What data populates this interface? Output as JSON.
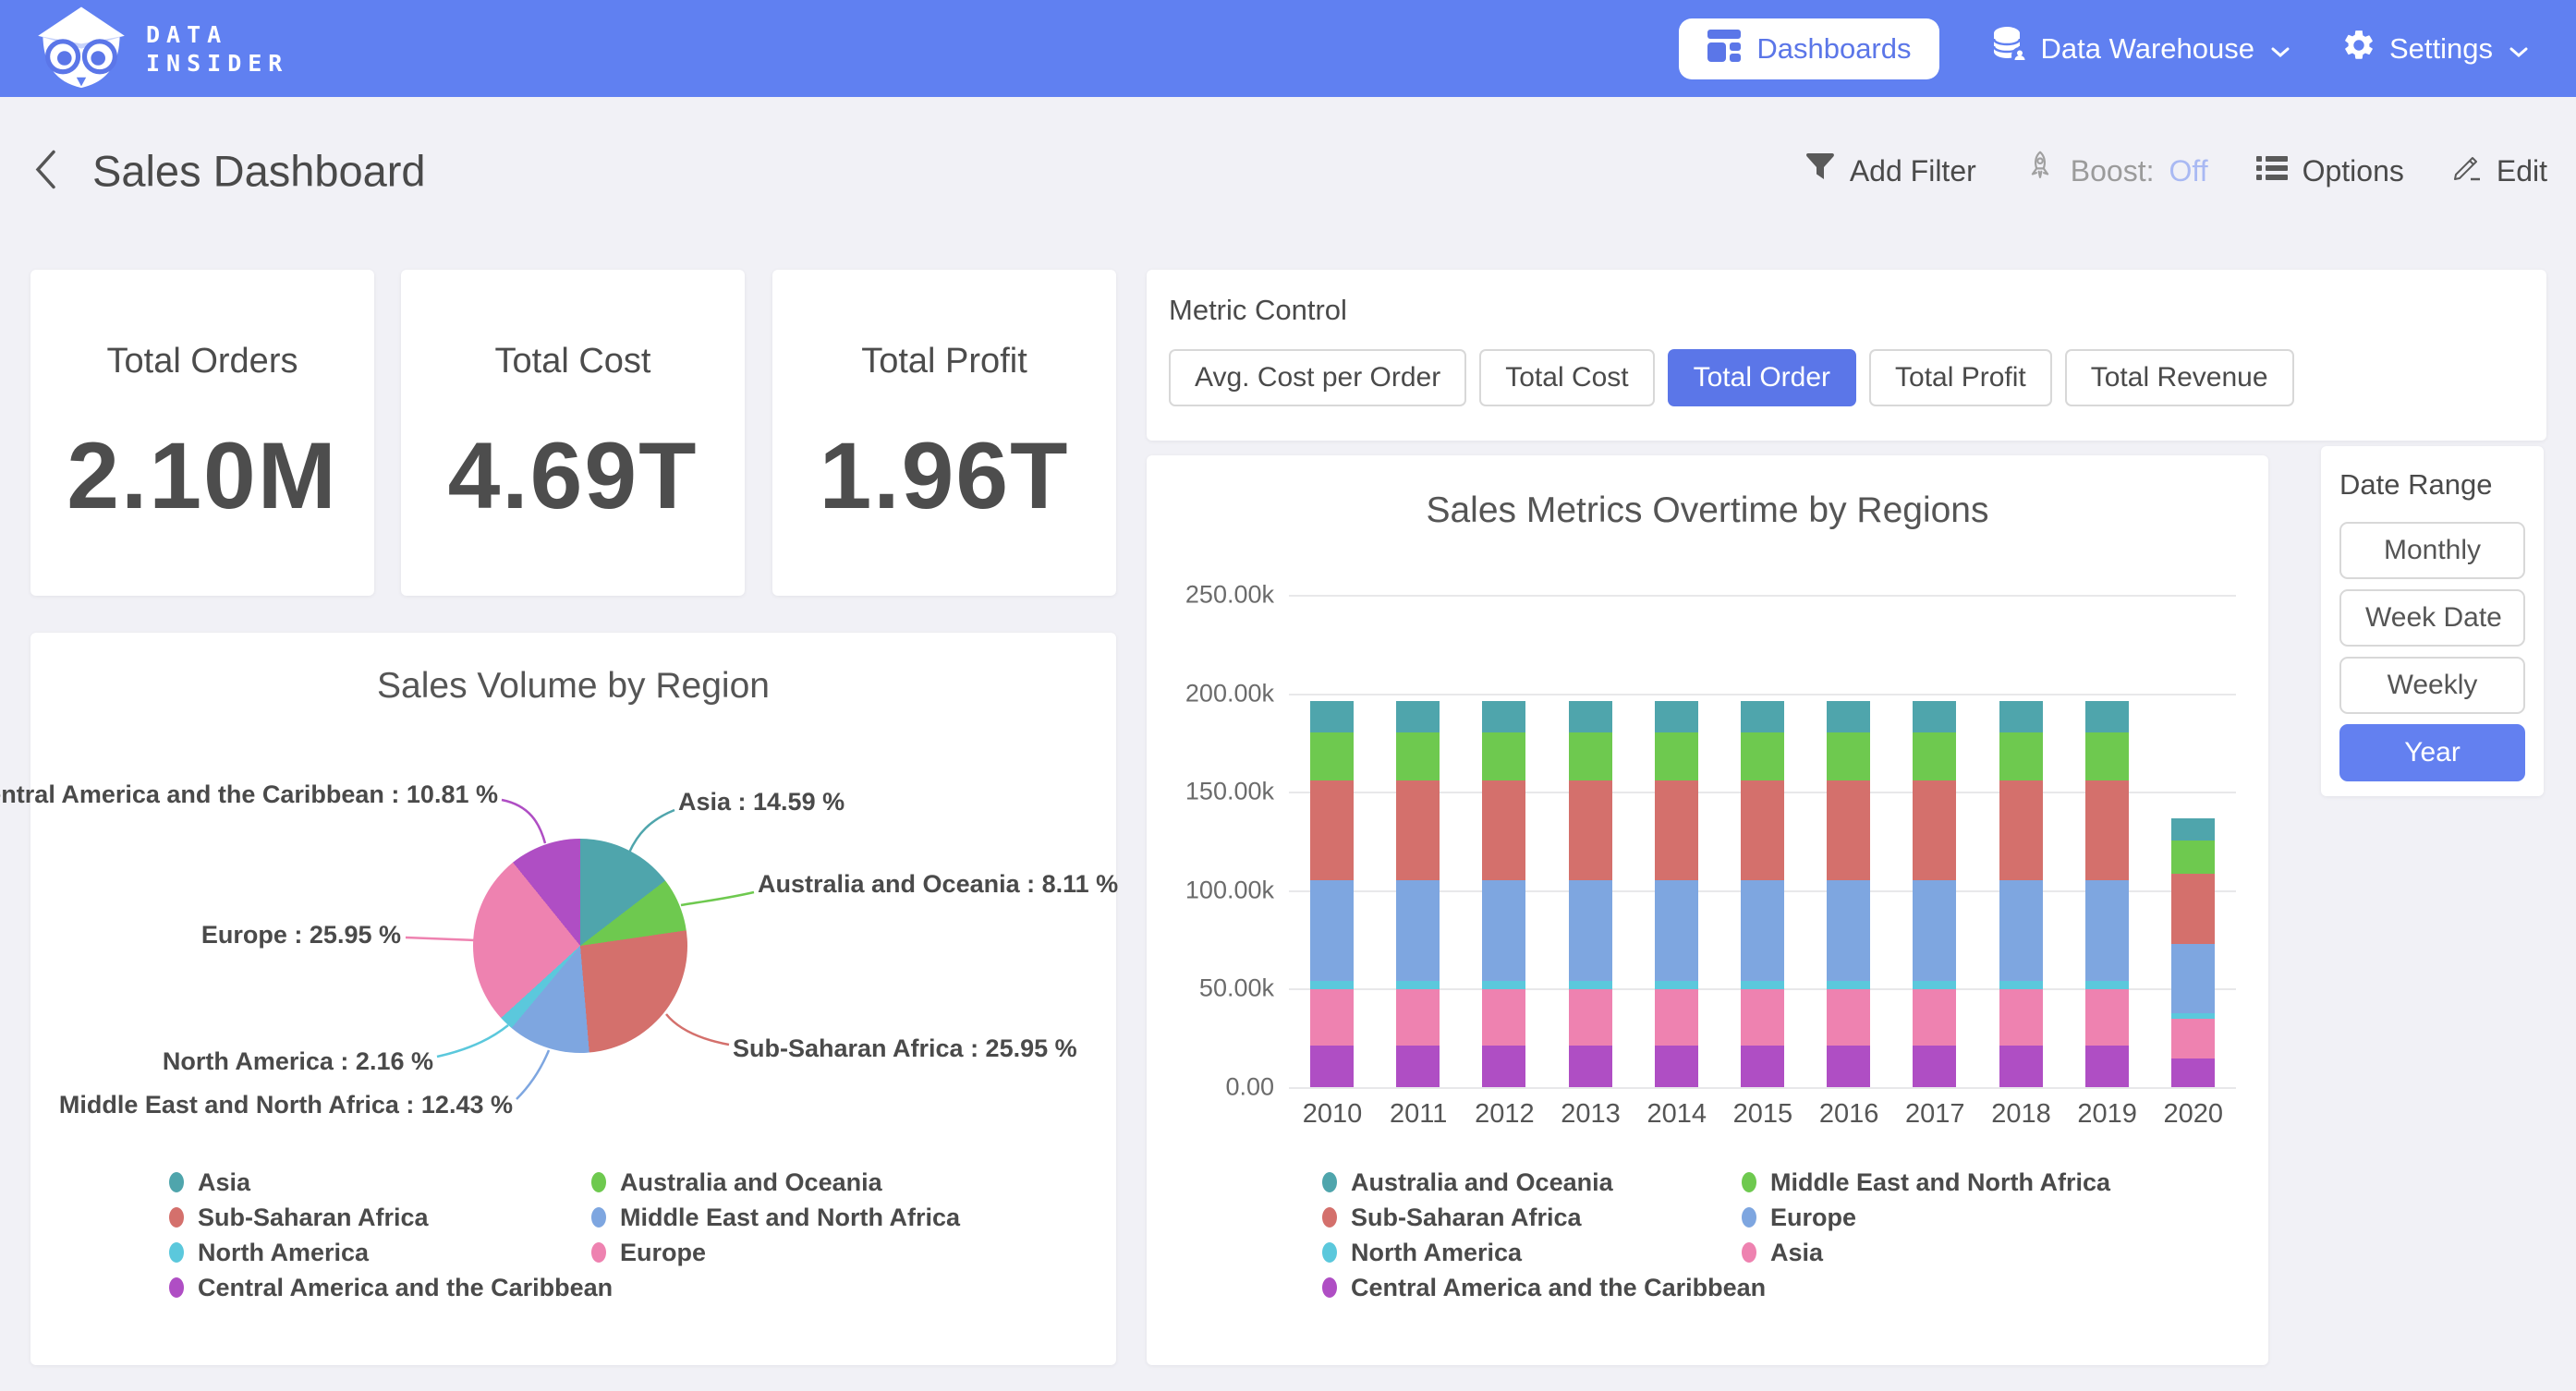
{
  "nav": {
    "brand_line1": "DATA",
    "brand_line2": "INSIDER",
    "items": [
      {
        "label": "Dashboards",
        "active": true
      },
      {
        "label": "Data Warehouse",
        "active": false
      },
      {
        "label": "Settings",
        "active": false
      }
    ]
  },
  "header": {
    "title": "Sales Dashboard",
    "actions": [
      {
        "label": "Add Filter"
      },
      {
        "label": "Boost:",
        "state": "Off"
      },
      {
        "label": "Options"
      },
      {
        "label": "Edit"
      }
    ]
  },
  "kpis": [
    {
      "label": "Total Orders",
      "value": "2.10M"
    },
    {
      "label": "Total Cost",
      "value": "4.69T"
    },
    {
      "label": "Total Profit",
      "value": "1.96T"
    }
  ],
  "metric_control": {
    "title": "Metric Control",
    "options": [
      "Avg. Cost per Order",
      "Total Cost",
      "Total Order",
      "Total Profit",
      "Total Revenue"
    ],
    "selected": "Total Order"
  },
  "date_range": {
    "title": "Date Range",
    "options": [
      "Monthly",
      "Week Date",
      "Weekly",
      "Year"
    ],
    "selected": "Year"
  },
  "colors": {
    "nav_blue": "#6080F1",
    "accent_blue": "#5B76E8",
    "boost_off": "#A9B9F3",
    "teal": "#4FA5AC",
    "green": "#6EC94F",
    "red": "#D4706C",
    "blue": "#7EA6E0",
    "cyan": "#5BC8DC",
    "pink": "#EE82B0",
    "purple": "#AF4EC4"
  },
  "chart_data": [
    {
      "type": "pie",
      "title": "Sales Volume by Region",
      "slices": [
        {
          "label": "Asia",
          "pct": 14.59,
          "color": "#4FA5AC"
        },
        {
          "label": "Australia and Oceania",
          "pct": 8.11,
          "color": "#6EC94F"
        },
        {
          "label": "Sub-Saharan Africa",
          "pct": 25.95,
          "color": "#D4706C"
        },
        {
          "label": "Middle East and North Africa",
          "pct": 12.43,
          "color": "#7EA6E0"
        },
        {
          "label": "North America",
          "pct": 2.16,
          "color": "#5BC8DC"
        },
        {
          "label": "Europe",
          "pct": 25.95,
          "color": "#EE82B0"
        },
        {
          "label": "Central America and the Caribbean",
          "pct": 10.81,
          "color": "#AF4EC4"
        }
      ],
      "callout_format": "{label} : {pct} %",
      "legend_columns": [
        [
          "Asia",
          "Sub-Saharan Africa",
          "North America",
          "Central America and the Caribbean"
        ],
        [
          "Australia and Oceania",
          "Middle East and North Africa",
          "Europe"
        ]
      ],
      "legend_position": "bottom"
    },
    {
      "type": "bar",
      "stacked": true,
      "title": "Sales Metrics Overtime by Regions",
      "categories": [
        "2010",
        "2011",
        "2012",
        "2013",
        "2014",
        "2015",
        "2016",
        "2017",
        "2018",
        "2019",
        "2020"
      ],
      "yticks": [
        "250.00k",
        "200.00k",
        "150.00k",
        "100.00k",
        "50.00k",
        "0.00"
      ],
      "ylim": [
        0,
        250000
      ],
      "grid": true,
      "series": [
        {
          "name": "Central America and the Caribbean",
          "color": "#AF4EC4",
          "values": [
            21200,
            21200,
            21200,
            21200,
            21200,
            21200,
            21200,
            21200,
            21200,
            21200,
            14700
          ]
        },
        {
          "name": "Asia",
          "color": "#EE82B0",
          "values": [
            28600,
            28600,
            28600,
            28600,
            28600,
            28600,
            28600,
            28600,
            28600,
            28600,
            19900
          ]
        },
        {
          "name": "North America",
          "color": "#5BC8DC",
          "values": [
            4200,
            4200,
            4200,
            4200,
            4200,
            4200,
            4200,
            4200,
            4200,
            4200,
            2900
          ]
        },
        {
          "name": "Europe",
          "color": "#7EA6E0",
          "values": [
            50900,
            50900,
            50900,
            50900,
            50900,
            50900,
            50900,
            50900,
            50900,
            50900,
            35400
          ]
        },
        {
          "name": "Sub-Saharan Africa",
          "color": "#D4706C",
          "values": [
            50900,
            50900,
            50900,
            50900,
            50900,
            50900,
            50900,
            50900,
            50900,
            50900,
            35400
          ]
        },
        {
          "name": "Middle East and North Africa",
          "color": "#6EC94F",
          "values": [
            24400,
            24400,
            24400,
            24400,
            24400,
            24400,
            24400,
            24400,
            24400,
            24400,
            17000
          ]
        },
        {
          "name": "Australia and Oceania",
          "color": "#4FA5AC",
          "values": [
            15900,
            15900,
            15900,
            15900,
            15900,
            15900,
            15900,
            15900,
            15900,
            15900,
            11100
          ]
        }
      ],
      "legend_columns": [
        [
          "Australia and Oceania",
          "Sub-Saharan Africa",
          "North America",
          "Central America and the Caribbean"
        ],
        [
          "Middle East and North Africa",
          "Europe",
          "Asia"
        ]
      ],
      "legend_position": "bottom"
    }
  ]
}
